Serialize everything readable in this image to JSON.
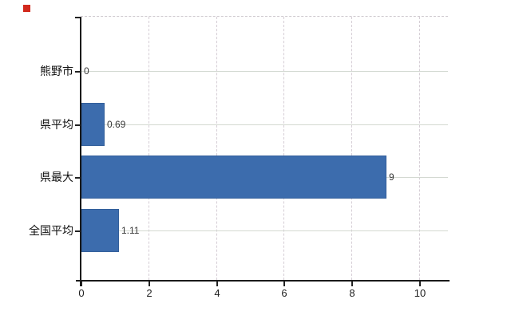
{
  "chart_data": {
    "type": "bar",
    "orientation": "horizontal",
    "title": "",
    "categories": [
      "熊野市",
      "県平均",
      "県最大",
      "全国平均"
    ],
    "values": [
      0,
      0.69,
      9,
      1.11
    ],
    "value_labels": [
      "0",
      "0.69",
      "9",
      "1.11"
    ],
    "x_ticks": [
      "0",
      "2",
      "4",
      "6",
      "8",
      "10"
    ],
    "x_tick_values": [
      0,
      2,
      4,
      6,
      8,
      10
    ],
    "xlim": [
      0,
      10.83
    ],
    "grid": true,
    "legend": "none",
    "bar_color": "#3c6cad",
    "colors": {
      "bar": "#3c6cad",
      "bar_border": "#335f9b",
      "axis": "#1a1a1a",
      "h_gridline": "#d3d9d1",
      "v_gridline": "#d5cdd5",
      "top_border": "#cfcacf",
      "value_label": "#383838",
      "tick_label": "#1f1f1f",
      "category_label": "#111111",
      "background": "#ffffff"
    }
  },
  "overlay_marker": {
    "color": "#d2291d"
  }
}
